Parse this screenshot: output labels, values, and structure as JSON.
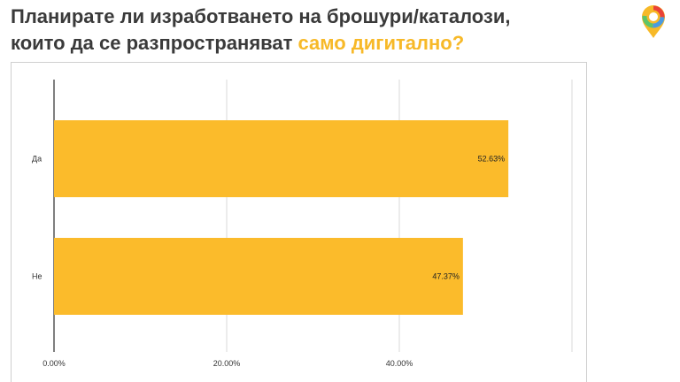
{
  "title": {
    "line1": "Планирате ли изработването на брошури/каталози,",
    "line2_prefix": "които да се разпространяват ",
    "line2_accent": "само дигитално?"
  },
  "colors": {
    "bar": "#fbbb2b",
    "accent": "#f7b928",
    "title": "#3a3a3a"
  },
  "logo": {
    "icon": "map-pin-logo-icon"
  },
  "chart_data": {
    "type": "bar",
    "orientation": "horizontal",
    "categories": [
      "Да",
      "Не"
    ],
    "values": [
      52.63,
      47.37
    ],
    "value_labels": [
      "52.63%",
      "47.37%"
    ],
    "xlim": [
      0,
      60
    ],
    "x_ticks": [
      0,
      20,
      40,
      60
    ],
    "x_tick_labels": [
      "0.00%",
      "20.00%",
      "40.00%",
      ""
    ],
    "grid": true
  }
}
